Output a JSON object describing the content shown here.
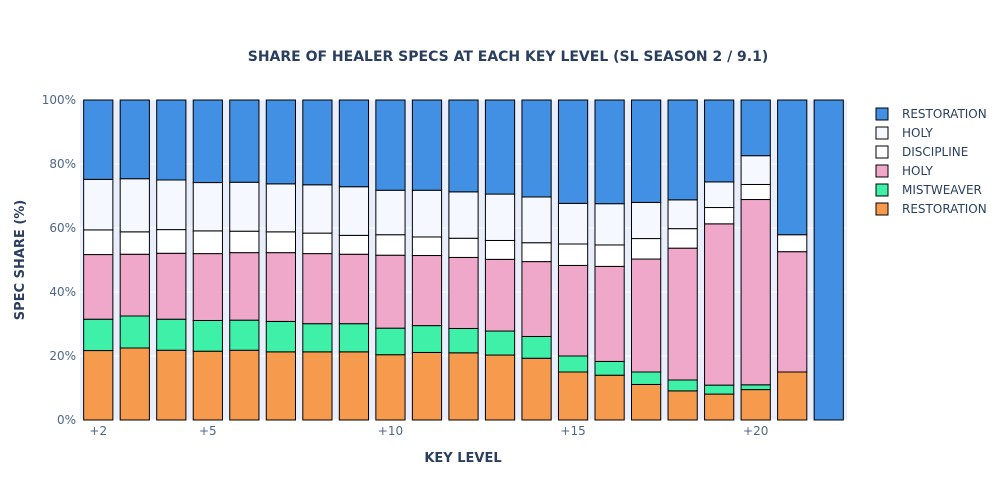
{
  "chart_data": {
    "type": "bar",
    "stacked": true,
    "title": "SHARE OF HEALER SPECS AT EACH KEY LEVEL (SL SEASON 2 / 9.1)",
    "xlabel": "KEY LEVEL",
    "ylabel": "SPEC SHARE (%)",
    "ylim": [
      0,
      100
    ],
    "yticks": [
      0,
      20,
      40,
      60,
      80,
      100
    ],
    "ytick_labels": [
      "0%",
      "20%",
      "40%",
      "60%",
      "80%",
      "100%"
    ],
    "categories": [
      2,
      3,
      4,
      5,
      6,
      7,
      8,
      9,
      10,
      11,
      12,
      13,
      14,
      15,
      16,
      17,
      18,
      19,
      20,
      21,
      22
    ],
    "xticks": [
      2,
      5,
      10,
      15,
      20
    ],
    "xtick_labels": [
      "+2",
      "+5",
      "+10",
      "+15",
      "+20"
    ],
    "legend_position": "right",
    "plot_background": "#e8eefc",
    "series": [
      {
        "name": "RESTORATION",
        "color": "#f69b4e",
        "values": [
          21.7,
          22.5,
          21.8,
          21.5,
          21.8,
          21.3,
          21.3,
          21.3,
          20.4,
          21.1,
          21.0,
          20.3,
          19.3,
          15.0,
          14.0,
          11.1,
          9.1,
          8.1,
          9.5,
          15.0,
          0
        ]
      },
      {
        "name": "MISTWEAVER",
        "color": "#3ff0a9",
        "values": [
          9.8,
          10.0,
          9.7,
          9.6,
          9.4,
          9.5,
          8.8,
          8.8,
          8.3,
          8.4,
          7.6,
          7.5,
          6.8,
          5.0,
          4.3,
          3.9,
          3.4,
          2.8,
          1.5,
          0,
          0
        ]
      },
      {
        "name": "HOLY",
        "color": "#efa8c9",
        "values": [
          20.2,
          19.3,
          20.6,
          20.9,
          21.1,
          21.5,
          21.9,
          21.7,
          22.8,
          21.9,
          22.2,
          22.4,
          23.4,
          28.3,
          29.7,
          35.3,
          41.2,
          50.4,
          57.9,
          37.6,
          0
        ]
      },
      {
        "name": "DISCIPLINE",
        "color": "#ffffff",
        "values": [
          7.7,
          7.0,
          7.4,
          7.1,
          6.7,
          6.5,
          6.4,
          5.9,
          6.4,
          5.8,
          6.0,
          5.9,
          5.9,
          6.7,
          6.7,
          6.4,
          6.1,
          5.1,
          4.7,
          5.3,
          0
        ]
      },
      {
        "name": "HOLY",
        "color": "#f5f8ff",
        "values": [
          15.8,
          16.6,
          15.5,
          15.1,
          15.3,
          15.0,
          15.1,
          15.2,
          13.9,
          14.6,
          14.5,
          14.5,
          14.3,
          12.7,
          12.9,
          11.3,
          9.0,
          8.0,
          9.0,
          0,
          0
        ]
      },
      {
        "name": "RESTORATION",
        "color": "#4190e3",
        "values": [
          24.8,
          24.6,
          25.0,
          25.8,
          25.7,
          26.2,
          26.5,
          27.1,
          28.2,
          28.2,
          28.7,
          29.4,
          30.3,
          32.3,
          32.4,
          32.0,
          31.2,
          25.6,
          17.4,
          42.1,
          100
        ]
      }
    ]
  }
}
